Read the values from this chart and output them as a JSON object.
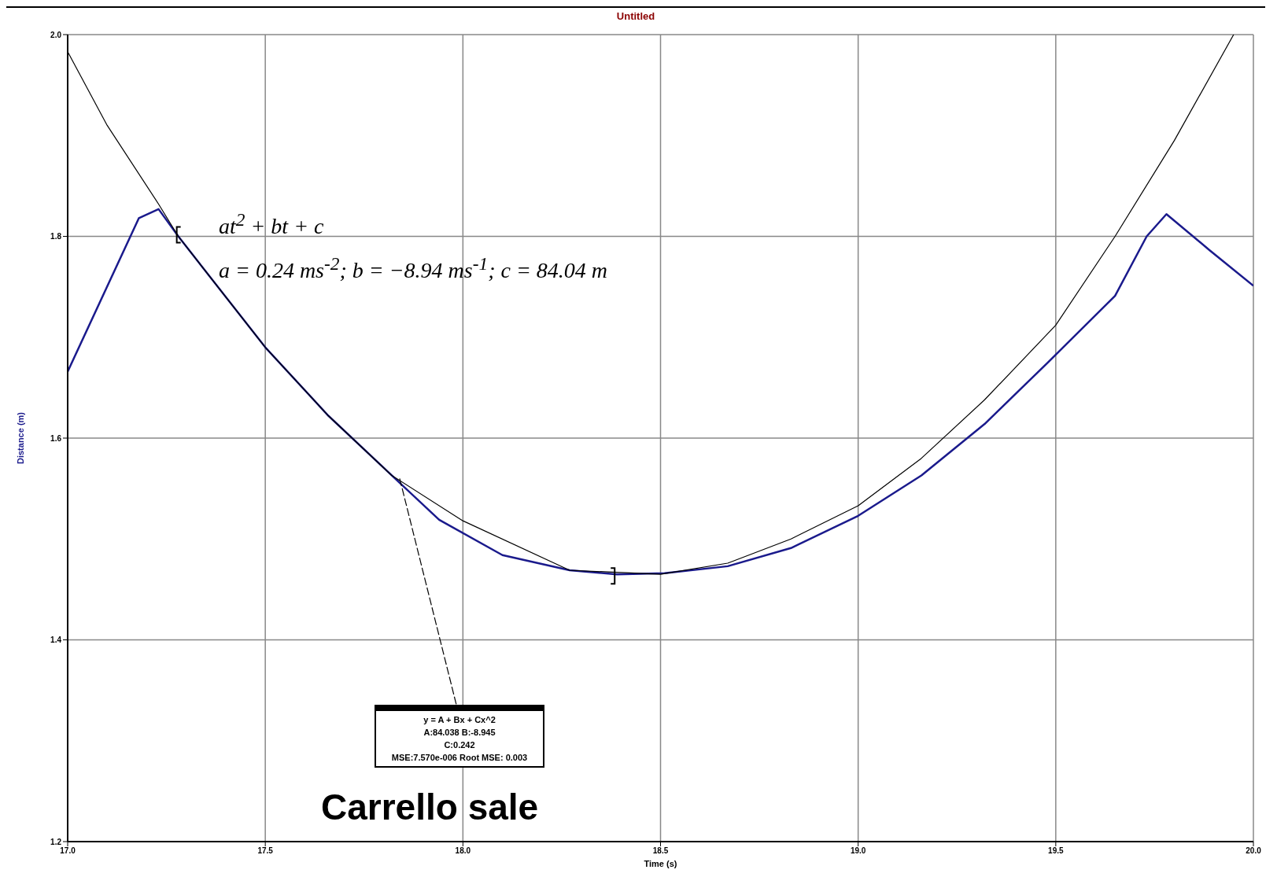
{
  "chart_data": {
    "type": "line",
    "title": "Untitled",
    "xlabel": "Time (s)",
    "ylabel": "Distance (m)",
    "xlim": [
      17.0,
      20.0
    ],
    "xticks": [
      {
        "value": 17.0,
        "label": "17.0"
      },
      {
        "value": 17.5,
        "label": "17.5"
      },
      {
        "value": 18.0,
        "label": "18.0"
      },
      {
        "value": 18.5,
        "label": "18.5"
      },
      {
        "value": 19.0,
        "label": "19.0"
      },
      {
        "value": 19.5,
        "label": "19.5"
      },
      {
        "value": 20.0,
        "label": "20.0"
      }
    ],
    "ylim": [
      1.2,
      2.0
    ],
    "yticks": [
      {
        "value": 1.2,
        "label": "1.2"
      },
      {
        "value": 1.4,
        "label": "1.4"
      },
      {
        "value": 1.6,
        "label": "1.6"
      },
      {
        "value": 1.8,
        "label": "1.8"
      },
      {
        "value": 2.0,
        "label": "2.0"
      }
    ],
    "grid": true,
    "marker": "none",
    "line_style": "solid",
    "series": [
      {
        "color": "#1a1a8c",
        "x": [
          17.0,
          17.18,
          17.23,
          17.28,
          17.5,
          17.66,
          17.82,
          17.94,
          18.1,
          18.27,
          18.39,
          18.51,
          18.67,
          18.83,
          19.0,
          19.16,
          19.32,
          19.48,
          19.65,
          19.73,
          19.78,
          19.89,
          20.0
        ],
        "values": [
          1.666,
          1.818,
          1.827,
          1.8,
          1.69,
          1.622,
          1.563,
          1.519,
          1.484,
          1.469,
          1.465,
          1.466,
          1.473,
          1.491,
          1.523,
          1.563,
          1.614,
          1.675,
          1.741,
          1.8,
          1.822,
          1.786,
          1.751
        ]
      },
      {
        "color": "#000000",
        "x": [
          17.0,
          17.1,
          17.23,
          17.28,
          17.5,
          17.66,
          17.82,
          18.0,
          18.27,
          18.5,
          18.67,
          18.83,
          19.0,
          19.16,
          19.32,
          19.5,
          19.65,
          19.8,
          19.95
        ],
        "values": [
          1.983,
          1.91,
          1.832,
          1.8,
          1.69,
          1.622,
          1.563,
          1.518,
          1.469,
          1.465,
          1.476,
          1.5,
          1.533,
          1.58,
          1.638,
          1.712,
          1.8,
          1.895,
          2.0
        ]
      }
    ],
    "annotations": [
      "at$^{2}$ + bt + c",
      "a = 0.24 ms$^{-2}$; b = −8.94 ms$^{-1}$; c = 84.04 m",
      {
        "text": "y = A + Bx + Cx^2\nA:84.038 B:-8.945\nC:0.242\nMSE:7.570e-006 Root MSE: 0.003",
        "x": 17.84,
        "y": 1.56
      },
      "Carrello sale"
    ]
  }
}
